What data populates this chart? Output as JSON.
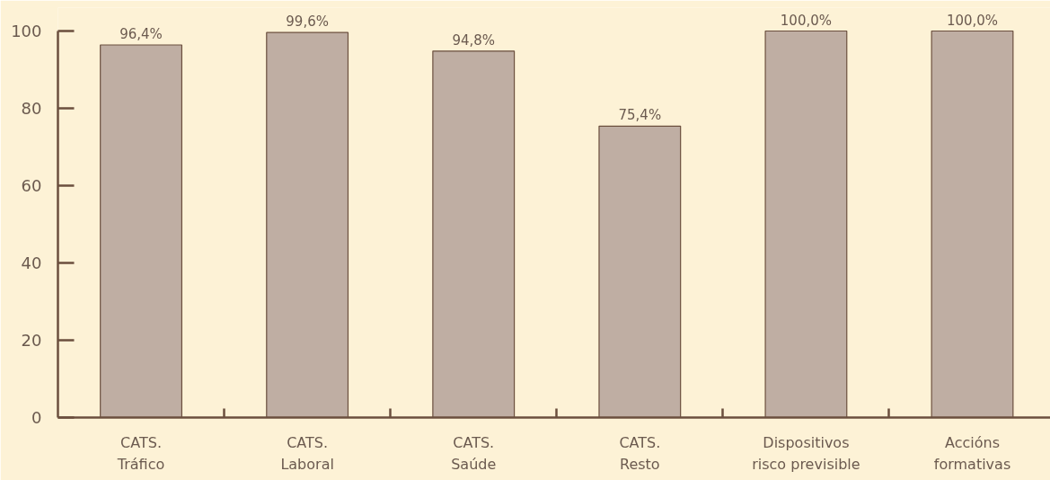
{
  "chart_data": {
    "type": "bar",
    "categories": [
      "CATS. Tráfico",
      "CATS. Laboral",
      "CATS. Saúde",
      "CATS. Resto",
      "Dispositivos risco previsible",
      "Accións formativas"
    ],
    "values": [
      96.4,
      99.6,
      94.8,
      75.4,
      100.0,
      100.0
    ],
    "value_labels": [
      "96,4%",
      "99,6%",
      "94,8%",
      "75,4%",
      "100,0%",
      "100,0%"
    ],
    "color": "#bfaea3",
    "ylim": [
      0,
      100
    ],
    "yticks": [
      0,
      20,
      40,
      60,
      80,
      100
    ]
  }
}
